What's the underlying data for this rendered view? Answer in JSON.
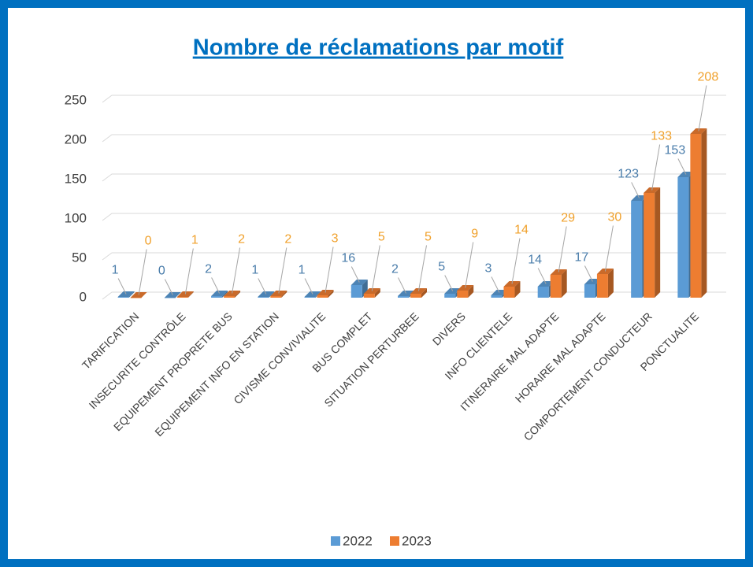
{
  "chart_data": {
    "type": "bar3d",
    "title": "Nombre de réclamations par motif",
    "categories": [
      "TARIFICATION",
      "INSECURITE CONTRÔLE",
      "EQUIPEMENT PROPRETE BUS",
      "EQUIPEMENT INFO EN STATION",
      "CIVISME CONVIVIALITE",
      "BUS COMPLET",
      "SITUATION PERTURBEE",
      "DIVERS",
      "INFO CLIENTELE",
      "ITINERAIRE MAL ADAPTE",
      "HORAIRE MAL ADAPTE",
      "COMPORTEMENT CONDUCTEUR",
      "PONCTUALITE"
    ],
    "series": [
      {
        "name": "2022",
        "color": "#5b9bd5",
        "values": [
          1,
          0,
          2,
          1,
          1,
          16,
          2,
          5,
          3,
          14,
          17,
          123,
          153
        ]
      },
      {
        "name": "2023",
        "color": "#ed7d31",
        "values": [
          0,
          1,
          2,
          2,
          3,
          5,
          5,
          9,
          14,
          29,
          30,
          133,
          208
        ]
      }
    ],
    "ylim": [
      0,
      250
    ],
    "yticks": [
      0,
      50,
      100,
      150,
      200,
      250
    ],
    "grid": true,
    "legend": "bottom"
  }
}
